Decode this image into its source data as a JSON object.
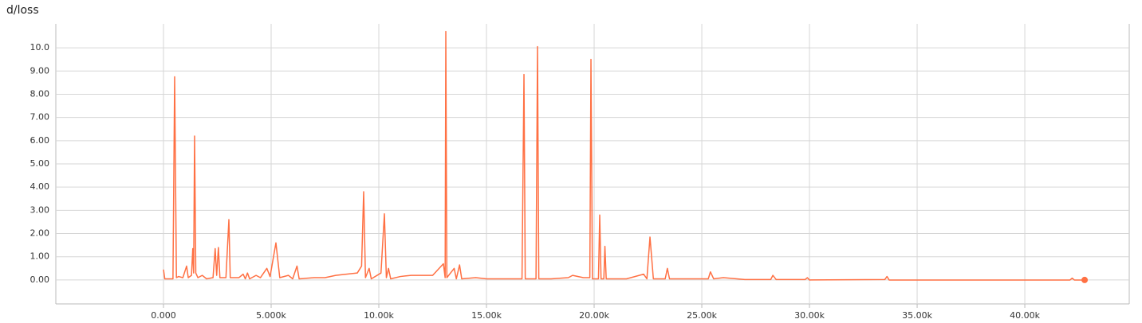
{
  "chart_data": {
    "type": "line",
    "title": "d/loss",
    "x": [
      0,
      60,
      440,
      518,
      600,
      700,
      900,
      1074,
      1150,
      1300,
      1360,
      1400,
      1444,
      1500,
      1600,
      1800,
      2000,
      2300,
      2400,
      2470,
      2550,
      2620,
      2900,
      3037,
      3100,
      3500,
      3700,
      3800,
      3900,
      4000,
      4300,
      4500,
      4800,
      4950,
      5222,
      5400,
      5800,
      6000,
      6200,
      6300,
      7000,
      7500,
      8000,
      8500,
      9000,
      9200,
      9296,
      9380,
      9550,
      9650,
      10100,
      10259,
      10350,
      10450,
      10550,
      11000,
      11500,
      12000,
      12500,
      13000,
      13080,
      13111,
      13160,
      13500,
      13600,
      13750,
      13850,
      14500,
      15000,
      16000,
      16650,
      16741,
      16800,
      17300,
      17370,
      17430,
      18000,
      18800,
      19000,
      19500,
      19800,
      19852,
      19920,
      20200,
      20259,
      20320,
      20450,
      20500,
      20560,
      21500,
      22300,
      22450,
      22593,
      22750,
      23300,
      23400,
      23500,
      24000,
      25300,
      25400,
      25550,
      26000,
      27000,
      28200,
      28300,
      28450,
      29800,
      29900,
      30000,
      33500,
      33600,
      33700,
      40000,
      42100,
      42200,
      42300,
      42778
    ],
    "series": [
      {
        "name": "d/loss",
        "color": "#ff7043",
        "values": [
          0.45,
          0.05,
          0.05,
          8.75,
          0.1,
          0.15,
          0.1,
          0.6,
          0.1,
          0.2,
          1.35,
          0.3,
          6.2,
          0.3,
          0.1,
          0.2,
          0.05,
          0.1,
          1.35,
          0.2,
          1.4,
          0.1,
          0.1,
          2.6,
          0.1,
          0.1,
          0.25,
          0.05,
          0.3,
          0.05,
          0.2,
          0.1,
          0.5,
          0.15,
          1.6,
          0.1,
          0.2,
          0.05,
          0.6,
          0.05,
          0.1,
          0.1,
          0.2,
          0.25,
          0.3,
          0.6,
          3.8,
          0.1,
          0.5,
          0.05,
          0.3,
          2.85,
          0.1,
          0.5,
          0.05,
          0.15,
          0.2,
          0.2,
          0.2,
          0.7,
          0.1,
          10.7,
          0.1,
          0.5,
          0.05,
          0.65,
          0.05,
          0.1,
          0.05,
          0.05,
          0.05,
          8.85,
          0.05,
          0.05,
          10.05,
          0.05,
          0.05,
          0.1,
          0.2,
          0.1,
          0.1,
          9.5,
          0.05,
          0.05,
          2.8,
          0.05,
          0.05,
          1.45,
          0.05,
          0.05,
          0.25,
          0.05,
          1.85,
          0.05,
          0.05,
          0.5,
          0.05,
          0.05,
          0.05,
          0.35,
          0.05,
          0.1,
          0.02,
          0.02,
          0.2,
          0.02,
          0.02,
          0.1,
          0.0,
          0.02,
          0.15,
          0.0,
          0.0,
          0.0,
          0.08,
          0.0,
          0.0
        ]
      }
    ],
    "xlim": [
      -5000,
      44850
    ],
    "ylim": [
      -1.03,
      11.03
    ],
    "xticks": [
      {
        "value": 0,
        "label": "0.000"
      },
      {
        "value": 5000,
        "label": "5.000k"
      },
      {
        "value": 10000,
        "label": "10.00k"
      },
      {
        "value": 15000,
        "label": "15.00k"
      },
      {
        "value": 20000,
        "label": "20.00k"
      },
      {
        "value": 25000,
        "label": "25.00k"
      },
      {
        "value": 30000,
        "label": "30.00k"
      },
      {
        "value": 35000,
        "label": "35.00k"
      },
      {
        "value": 40000,
        "label": "40.00k"
      }
    ],
    "yticks": [
      {
        "value": 0,
        "label": "0.00"
      },
      {
        "value": 1,
        "label": "1.00"
      },
      {
        "value": 2,
        "label": "2.00"
      },
      {
        "value": 3,
        "label": "3.00"
      },
      {
        "value": 4,
        "label": "4.00"
      },
      {
        "value": 5,
        "label": "5.00"
      },
      {
        "value": 6,
        "label": "6.00"
      },
      {
        "value": 7,
        "label": "7.00"
      },
      {
        "value": 8,
        "label": "8.00"
      },
      {
        "value": 9,
        "label": "9.00"
      },
      {
        "value": 10,
        "label": "10.0"
      }
    ],
    "grid": true
  }
}
